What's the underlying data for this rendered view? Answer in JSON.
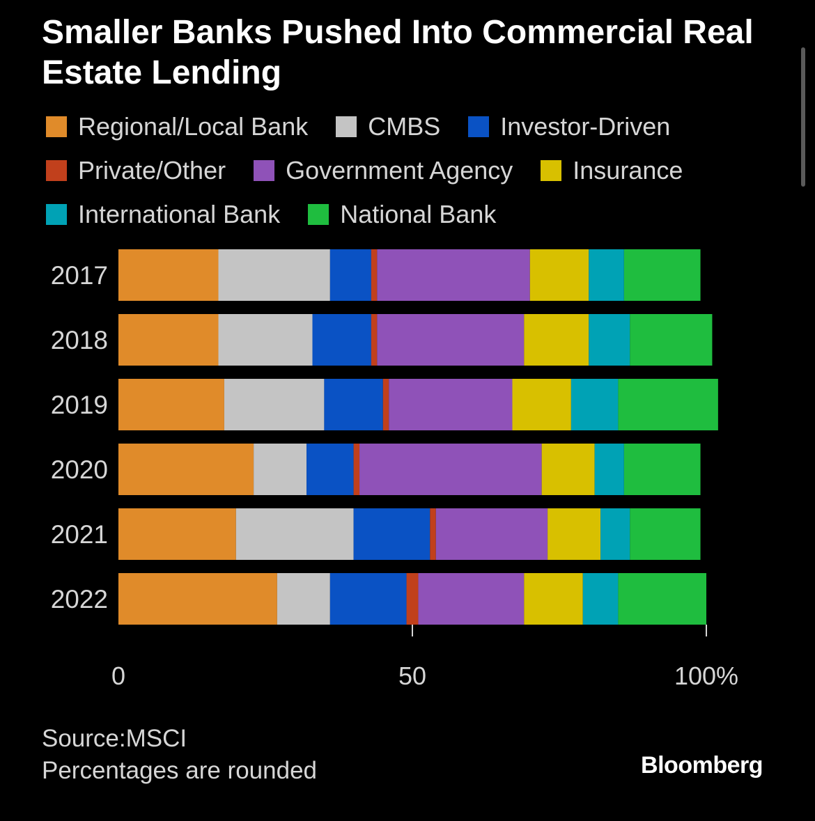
{
  "chart_data": {
    "type": "bar",
    "orientation": "horizontal",
    "stacked": true,
    "title": "Smaller Banks Pushed Into Commercial Real Estate Lending",
    "categories": [
      "2017",
      "2018",
      "2019",
      "2020",
      "2021",
      "2022"
    ],
    "series": [
      {
        "name": "Regional/Local Bank",
        "color": "#e08b2a",
        "values": [
          17,
          17,
          18,
          23,
          20,
          27
        ]
      },
      {
        "name": "CMBS",
        "color": "#c4c4c4",
        "values": [
          19,
          16,
          17,
          9,
          20,
          9
        ]
      },
      {
        "name": "Investor-Driven",
        "color": "#0a52c4",
        "values": [
          7,
          10,
          10,
          8,
          13,
          13
        ]
      },
      {
        "name": "Private/Other",
        "color": "#c1401c",
        "values": [
          1,
          1,
          1,
          1,
          1,
          2
        ]
      },
      {
        "name": "Government Agency",
        "color": "#8f52b8",
        "values": [
          26,
          25,
          21,
          31,
          19,
          18
        ]
      },
      {
        "name": "Insurance",
        "color": "#d8c000",
        "values": [
          10,
          11,
          10,
          9,
          9,
          10
        ]
      },
      {
        "name": "International Bank",
        "color": "#00a2b5",
        "values": [
          6,
          7,
          8,
          5,
          5,
          6
        ]
      },
      {
        "name": "National Bank",
        "color": "#1fbd3f",
        "values": [
          13,
          14,
          17,
          13,
          12,
          15
        ]
      }
    ],
    "xticks": [
      "0",
      "50",
      "100%"
    ],
    "xtick_values": [
      0,
      50,
      100
    ],
    "xlim": [
      0,
      100
    ],
    "grid": false,
    "legend_position": "top"
  },
  "footer": {
    "source": "Source:MSCI",
    "note": "Percentages are rounded"
  },
  "brand": "Bloomberg"
}
